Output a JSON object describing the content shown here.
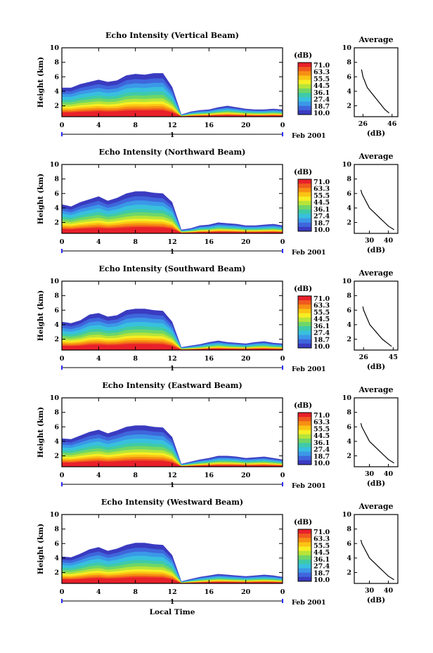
{
  "figure": {
    "xlabel": "Local Time",
    "date_label": "Feb 2001",
    "day_label": "1",
    "colorbar_title": "(dB)",
    "colorbar_levels": [
      "71.0",
      "63.3",
      "55.5",
      "44.5",
      "36.1",
      "27.4",
      "18.7",
      "10.0"
    ],
    "colorbar_colors": [
      "#e8202a",
      "#f05a1e",
      "#f78f14",
      "#fbc414",
      "#f6ee24",
      "#b6e43a",
      "#6fd668",
      "#3fcaa8",
      "#38c0de",
      "#3b98e8",
      "#3f66dc",
      "#3a3bc0"
    ],
    "profile_title": "Average",
    "profile_xlabel": "(dB)"
  },
  "chart_data": [
    {
      "type": "heatmap",
      "title": "Echo Intensity (Vertical Beam)",
      "ylabel": "Height (km)",
      "xlabel": "",
      "x_ticks": [
        "0",
        "4",
        "8",
        "12",
        "16",
        "20",
        "0"
      ],
      "y_ticks": [
        "2",
        "4",
        "6",
        "8",
        "10"
      ],
      "xlim": [
        0,
        24
      ],
      "ylim": [
        0.5,
        10
      ],
      "echo_top_km": [
        4.5,
        4.5,
        5.0,
        5.3,
        5.6,
        5.3,
        5.5,
        6.2,
        6.4,
        6.3,
        6.5,
        6.5,
        4.6,
        0.8,
        1.2,
        1.4,
        1.5,
        1.8,
        2.0,
        1.8,
        1.6,
        1.5,
        1.5,
        1.6,
        1.5
      ],
      "profile": {
        "x_ticks": [
          "26",
          "46"
        ],
        "xlim": [
          20,
          50
        ],
        "height_km": [
          1.0,
          1.5,
          2.0,
          2.5,
          3.0,
          3.5,
          4.0,
          4.5,
          5.0,
          5.5,
          6.0,
          6.5,
          7.0
        ],
        "value_db": [
          44,
          41,
          39,
          37,
          35,
          33,
          31,
          29,
          28,
          27,
          26,
          25.5,
          25
        ]
      }
    },
    {
      "type": "heatmap",
      "title": "Echo Intensity (Northward Beam)",
      "ylabel": "Height (km)",
      "xlabel": "",
      "x_ticks": [
        "0",
        "4",
        "8",
        "12",
        "16",
        "20",
        "0"
      ],
      "y_ticks": [
        "2",
        "4",
        "6",
        "8",
        "10"
      ],
      "xlim": [
        0,
        24
      ],
      "ylim": [
        0.5,
        10
      ],
      "echo_top_km": [
        4.5,
        4.2,
        4.8,
        5.2,
        5.6,
        5.0,
        5.4,
        6.0,
        6.3,
        6.3,
        6.1,
        6.0,
        4.8,
        1.0,
        1.2,
        1.6,
        1.7,
        2.0,
        1.9,
        1.8,
        1.6,
        1.6,
        1.7,
        1.8,
        1.6
      ],
      "profile": {
        "x_ticks": [
          "30",
          "40"
        ],
        "xlim": [
          22,
          45
        ],
        "height_km": [
          1.0,
          1.5,
          2.0,
          2.5,
          3.0,
          3.5,
          4.0,
          4.5,
          5.0,
          5.5,
          6.0,
          6.5
        ],
        "value_db": [
          43,
          40,
          38,
          36,
          34,
          32,
          30,
          29,
          28,
          27,
          26,
          25.5
        ]
      }
    },
    {
      "type": "heatmap",
      "title": "Echo Intensity (Southward Beam)",
      "ylabel": "Height (km)",
      "xlabel": "",
      "x_ticks": [
        "0",
        "4",
        "8",
        "12",
        "16",
        "20",
        "0"
      ],
      "y_ticks": [
        "2",
        "4",
        "6",
        "8",
        "10"
      ],
      "xlim": [
        0,
        24
      ],
      "ylim": [
        0.5,
        10
      ],
      "echo_top_km": [
        4.4,
        4.2,
        4.6,
        5.4,
        5.6,
        5.1,
        5.3,
        6.0,
        6.2,
        6.2,
        6.0,
        5.9,
        4.4,
        0.9,
        1.1,
        1.3,
        1.6,
        1.8,
        1.6,
        1.5,
        1.4,
        1.6,
        1.7,
        1.5,
        1.4
      ],
      "profile": {
        "x_ticks": [
          "26",
          "45"
        ],
        "xlim": [
          20,
          48
        ],
        "height_km": [
          1.0,
          1.5,
          2.0,
          2.5,
          3.0,
          3.5,
          4.0,
          4.5,
          5.0,
          5.5,
          6.0,
          6.5
        ],
        "value_db": [
          44,
          41,
          38,
          36,
          34,
          32,
          30,
          29,
          28,
          27,
          26,
          25.5
        ]
      }
    },
    {
      "type": "heatmap",
      "title": "Echo Intensity (Eastward Beam)",
      "ylabel": "Height (km)",
      "xlabel": "",
      "x_ticks": [
        "0",
        "4",
        "8",
        "12",
        "16",
        "20",
        "0"
      ],
      "y_ticks": [
        "2",
        "4",
        "6",
        "8",
        "10"
      ],
      "xlim": [
        0,
        24
      ],
      "ylim": [
        0.5,
        10
      ],
      "echo_top_km": [
        4.4,
        4.3,
        4.8,
        5.3,
        5.6,
        5.1,
        5.5,
        6.0,
        6.2,
        6.2,
        6.0,
        5.9,
        4.6,
        0.9,
        1.2,
        1.5,
        1.7,
        2.0,
        2.0,
        1.9,
        1.7,
        1.8,
        1.9,
        1.7,
        1.5
      ],
      "profile": {
        "x_ticks": [
          "30",
          "40"
        ],
        "xlim": [
          22,
          45
        ],
        "height_km": [
          1.0,
          1.5,
          2.0,
          2.5,
          3.0,
          3.5,
          4.0,
          4.5,
          5.0,
          5.5,
          6.0,
          6.5
        ],
        "value_db": [
          43,
          40,
          38,
          36,
          34,
          32,
          30,
          29,
          28,
          27,
          26,
          25.5
        ]
      }
    },
    {
      "type": "heatmap",
      "title": "Echo Intensity (Westward Beam)",
      "ylabel": "Height (km)",
      "xlabel": "Local Time",
      "x_ticks": [
        "0",
        "4",
        "8",
        "12",
        "16",
        "20",
        "0"
      ],
      "y_ticks": [
        "2",
        "4",
        "6",
        "8",
        "10"
      ],
      "xlim": [
        0,
        24
      ],
      "ylim": [
        0.5,
        10
      ],
      "echo_top_km": [
        4.2,
        4.1,
        4.6,
        5.2,
        5.5,
        5.0,
        5.3,
        5.8,
        6.1,
        6.1,
        5.9,
        5.8,
        4.4,
        0.8,
        1.1,
        1.4,
        1.6,
        1.8,
        1.7,
        1.6,
        1.5,
        1.6,
        1.7,
        1.6,
        1.4
      ],
      "profile": {
        "x_ticks": [
          "30",
          "40"
        ],
        "xlim": [
          22,
          45
        ],
        "height_km": [
          1.0,
          1.5,
          2.0,
          2.5,
          3.0,
          3.5,
          4.0,
          4.5,
          5.0,
          5.5,
          6.0,
          6.5
        ],
        "value_db": [
          43,
          40,
          38,
          36,
          34,
          32,
          30,
          29,
          28,
          27,
          26,
          25.5
        ]
      }
    }
  ]
}
